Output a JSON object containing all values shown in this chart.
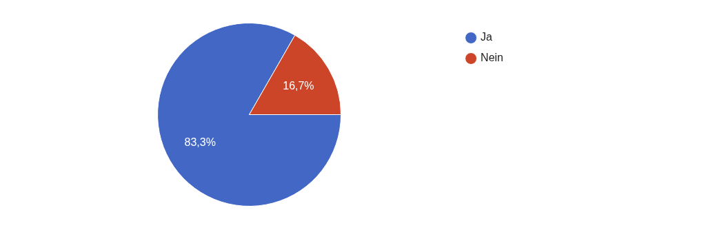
{
  "chart_data": {
    "type": "pie",
    "categories": [
      "Ja",
      "Nein"
    ],
    "values": [
      83.3,
      16.7
    ],
    "colors": [
      "#4267c5",
      "#cc4529"
    ],
    "value_labels": [
      "83,3%",
      "16,7%"
    ],
    "legend": "top right"
  }
}
